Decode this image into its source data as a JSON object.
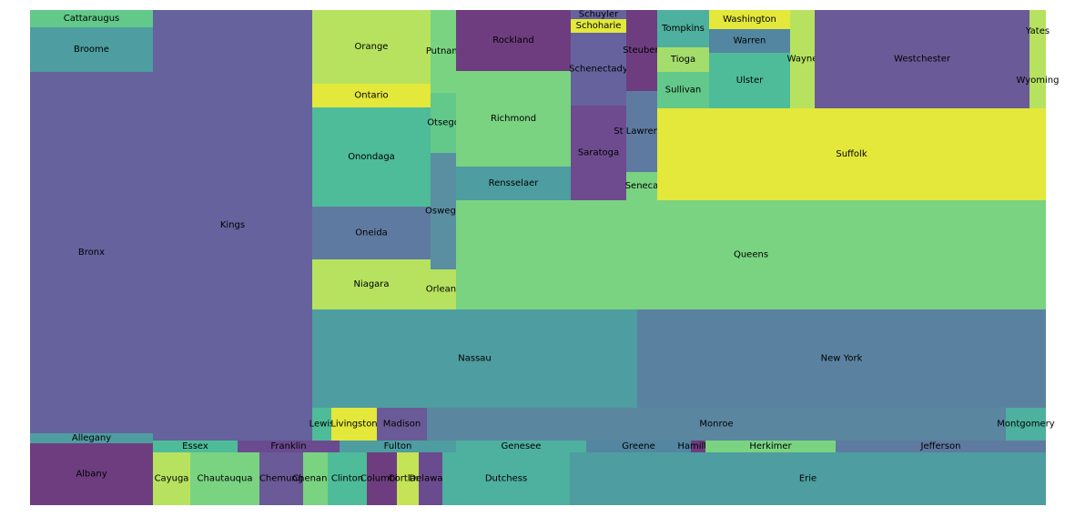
{
  "chart_data": {
    "type": "treemap",
    "title": "",
    "tiles": [
      {
        "label": "Cattaraugus",
        "color": "#62c98a"
      },
      {
        "label": "Broome",
        "color": "#4e9da0"
      },
      {
        "label": "Bronx",
        "color": "#65629d"
      },
      {
        "label": "Allegany",
        "color": "#4e9da0"
      },
      {
        "label": "Albany",
        "color": "#6e3d7f"
      },
      {
        "label": "Kings",
        "color": "#65629d"
      },
      {
        "label": "Essex",
        "color": "#4ebc98"
      },
      {
        "label": "Franklin",
        "color": "#6a4b8f"
      },
      {
        "label": "Fulton",
        "color": "#4e9da0"
      },
      {
        "label": "Genesee",
        "color": "#4eb09e"
      },
      {
        "label": "Greene",
        "color": "#5386a0"
      },
      {
        "label": "Hamilton",
        "color": "#6e3d7f"
      },
      {
        "label": "Herkimer",
        "color": "#7ad381"
      },
      {
        "label": "Jefferson",
        "color": "#5f7aa0"
      },
      {
        "label": "Cayuga",
        "color": "#b7e260"
      },
      {
        "label": "Chautauqua",
        "color": "#7ad381"
      },
      {
        "label": "Chemung",
        "color": "#6a5a97"
      },
      {
        "label": "Chenango",
        "color": "#7ad381"
      },
      {
        "label": "Clinton",
        "color": "#4ebc98"
      },
      {
        "label": "Columbia",
        "color": "#6e3d7f"
      },
      {
        "label": "Cortland",
        "color": "#c4e356"
      },
      {
        "label": "Delaware",
        "color": "#6a4b8f"
      },
      {
        "label": "Dutchess",
        "color": "#4eb09e"
      },
      {
        "label": "Erie",
        "color": "#4e9da0"
      },
      {
        "label": "Orange",
        "color": "#b7e260"
      },
      {
        "label": "Ontario",
        "color": "#e3e83a"
      },
      {
        "label": "Onondaga",
        "color": "#4ebc98"
      },
      {
        "label": "Oneida",
        "color": "#5f7aa0"
      },
      {
        "label": "Niagara",
        "color": "#b7e260"
      },
      {
        "label": "Putnam",
        "color": "#7ad381"
      },
      {
        "label": "Otsego",
        "color": "#62c98a"
      },
      {
        "label": "Oswego",
        "color": "#5a8fa2"
      },
      {
        "label": "Orleans",
        "color": "#b7e260"
      },
      {
        "label": "Rockland",
        "color": "#6e3d7f"
      },
      {
        "label": "Richmond",
        "color": "#7ad381"
      },
      {
        "label": "Rensselaer",
        "color": "#4e9da0"
      },
      {
        "label": "Schuyler",
        "color": "#65629d"
      },
      {
        "label": "Schoharie",
        "color": "#e3e83a"
      },
      {
        "label": "Schenectady",
        "color": "#65629d"
      },
      {
        "label": "Saratoga",
        "color": "#6e4b8f"
      },
      {
        "label": "Steuben",
        "color": "#6e3d7f"
      },
      {
        "label": "St Lawrence",
        "color": "#5f7aa0"
      },
      {
        "label": "Seneca",
        "color": "#7ad381"
      },
      {
        "label": "Tompkins",
        "color": "#4eb09e"
      },
      {
        "label": "Tioga",
        "color": "#a5dd6c"
      },
      {
        "label": "Sullivan",
        "color": "#62c98a"
      },
      {
        "label": "Washington",
        "color": "#e3e83a"
      },
      {
        "label": "Warren",
        "color": "#5386a0"
      },
      {
        "label": "Ulster",
        "color": "#4ebc98"
      },
      {
        "label": "Wayne",
        "color": "#b7e260"
      },
      {
        "label": "Westchester",
        "color": "#6a5a97"
      },
      {
        "label": "Yates",
        "color": "#b7e260"
      },
      {
        "label": "Wyoming",
        "color": "#b7e260"
      },
      {
        "label": "Suffolk",
        "color": "#e3e83a"
      },
      {
        "label": "Queens",
        "color": "#7ad381"
      },
      {
        "label": "Nassau",
        "color": "#4e9da0"
      },
      {
        "label": "New York",
        "color": "#5a82a0"
      },
      {
        "label": "Lewis",
        "color": "#4ebc98"
      },
      {
        "label": "Livingston",
        "color": "#e3e83a"
      },
      {
        "label": "Madison",
        "color": "#6a5a97"
      },
      {
        "label": "Monroe",
        "color": "#5a86a0"
      },
      {
        "label": "Montgomery",
        "color": "#4eb09e"
      }
    ]
  }
}
